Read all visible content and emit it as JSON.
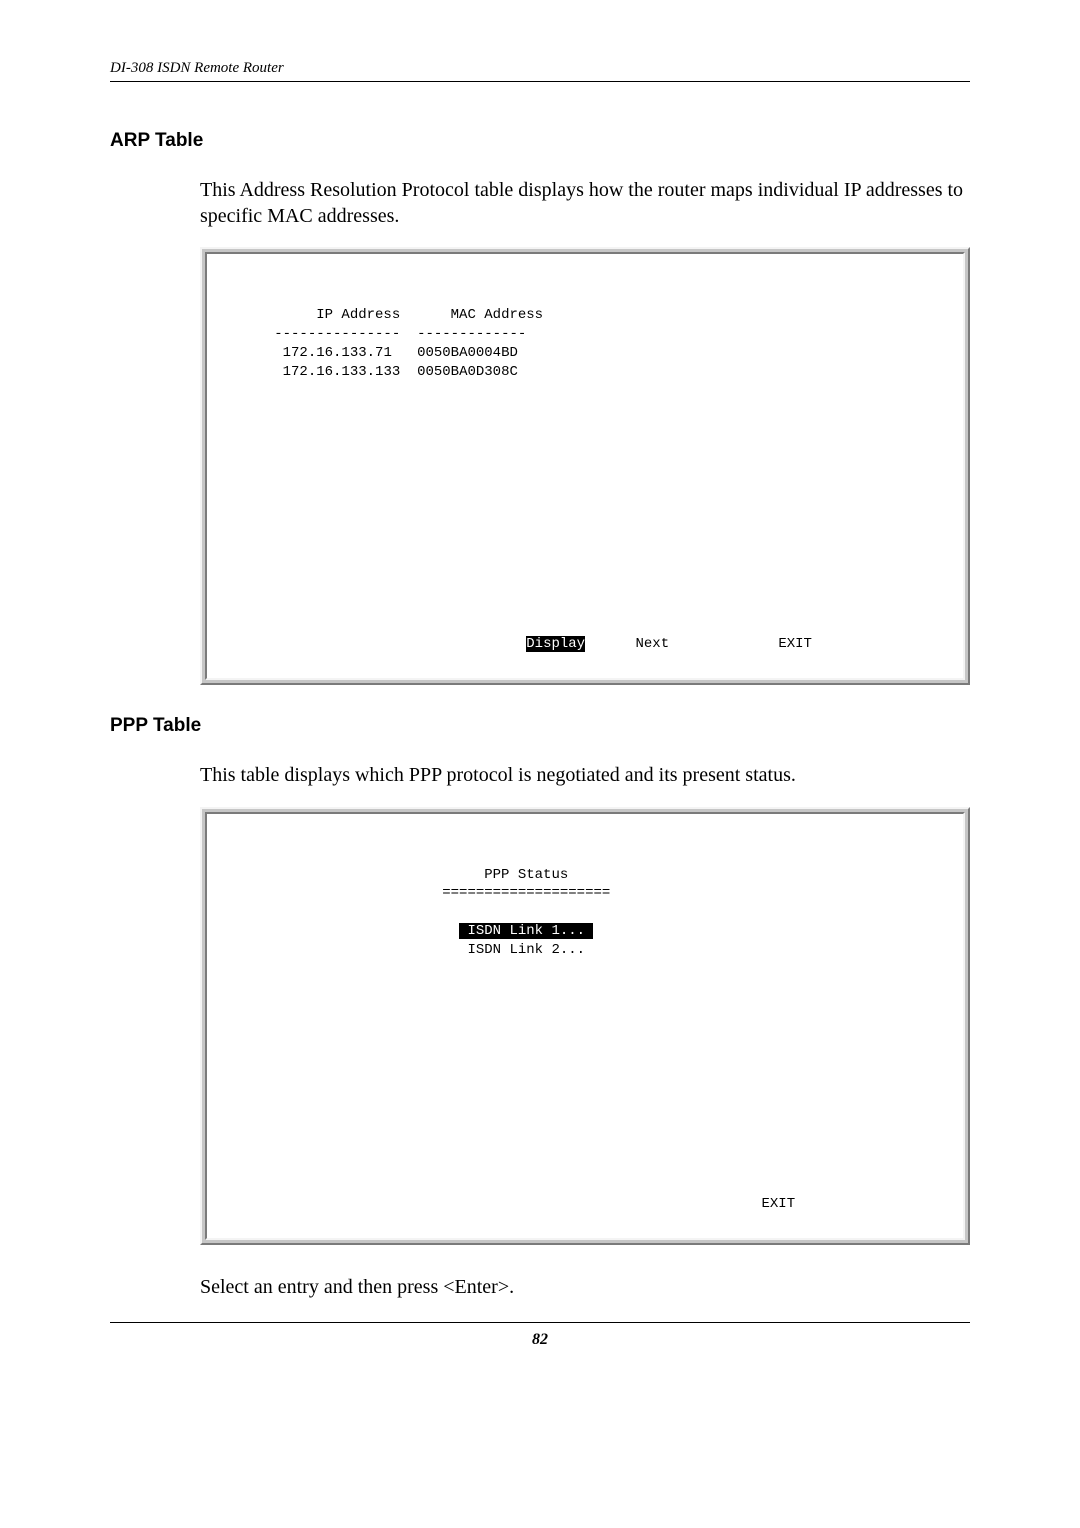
{
  "doc": {
    "header": "DI-308 ISDN Remote Router",
    "page_number": "82"
  },
  "arp": {
    "heading": "ARP Table",
    "paragraph": "This Address Resolution Protocol table displays how the router maps individual IP addresses to specific MAC addresses.",
    "col1_header": "IP Address",
    "col2_header": "MAC Address",
    "col1_divider": "---------------",
    "col2_divider": "-------------",
    "rows": [
      {
        "ip": "172.16.133.71",
        "mac": "0050BA0004BD"
      },
      {
        "ip": "172.16.133.133",
        "mac": "0050BA0D308C"
      }
    ],
    "btn_display": "Display",
    "btn_next": "Next",
    "btn_exit": "EXIT"
  },
  "ppp": {
    "heading": "PPP Table",
    "paragraph": "This table displays which PPP protocol is negotiated and its present status.",
    "title": "PPP Status",
    "divider": "====================",
    "link1": "ISDN Link 1...",
    "link2": "ISDN Link 2...",
    "btn_exit": "EXIT",
    "footer_text": "Select an entry and then press <Enter>."
  }
}
